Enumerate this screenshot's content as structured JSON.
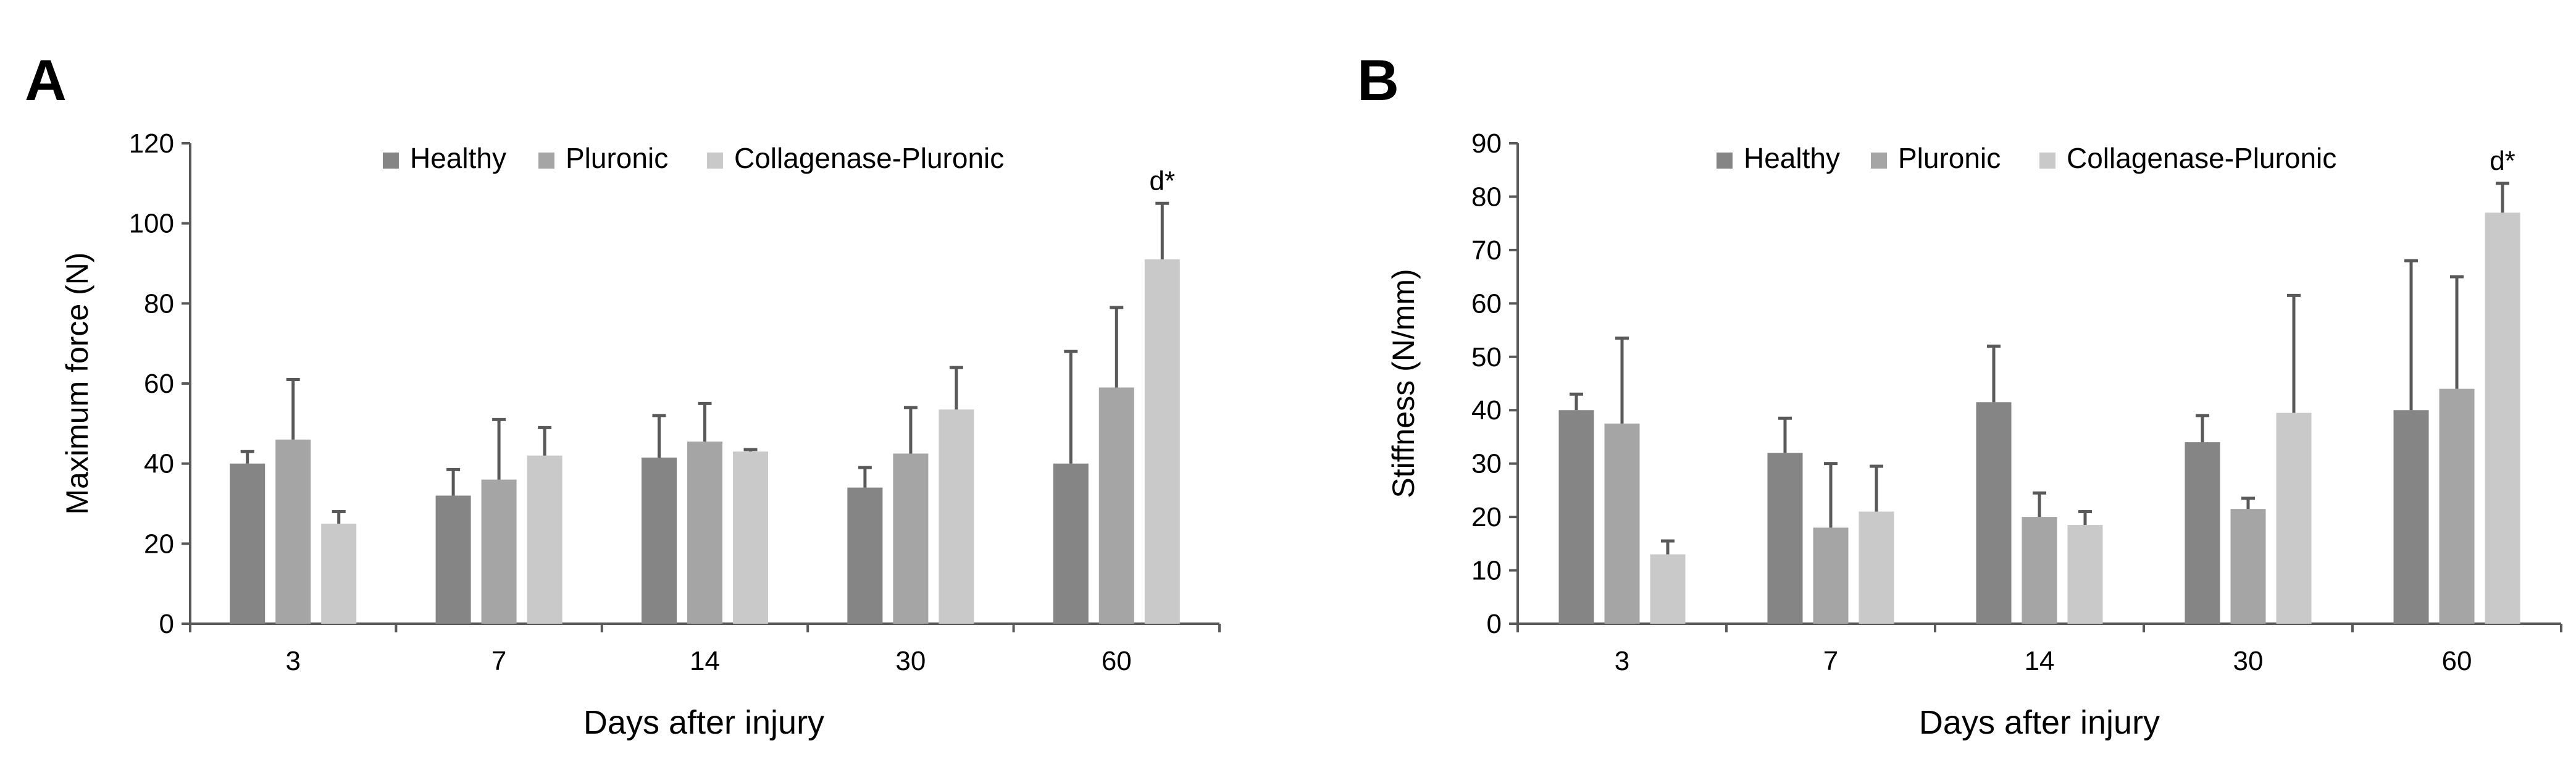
{
  "colors": {
    "healthy": "#858585",
    "pluronic": "#a5a5a5",
    "collagenase": "#c9c9c9",
    "error_bar": "#595959",
    "axis": "#595959"
  },
  "chart_data": [
    {
      "panel_label": "A",
      "type": "bar",
      "title": "",
      "xlabel": "Days after injury",
      "ylabel": "Maximum force (N)",
      "ylim": [
        0,
        120
      ],
      "yticks": [
        0,
        20,
        40,
        60,
        80,
        100,
        120
      ],
      "categories": [
        "3",
        "7",
        "14",
        "30",
        "60"
      ],
      "legend_position": "top-center",
      "series": [
        {
          "name": "Healthy",
          "values": [
            40,
            32,
            41.5,
            34,
            40
          ],
          "errors": [
            3,
            6.5,
            10.5,
            5,
            28
          ]
        },
        {
          "name": "Pluronic",
          "values": [
            46,
            36,
            45.5,
            42.5,
            59
          ],
          "errors": [
            15,
            15,
            9.5,
            11.5,
            20
          ]
        },
        {
          "name": "Collagenase-Pluronic",
          "values": [
            25,
            42,
            43,
            53.5,
            91
          ],
          "errors": [
            3,
            7,
            0.5,
            10.5,
            14
          ]
        }
      ],
      "annotations": [
        {
          "category": "60",
          "series": "Collagenase-Pluronic",
          "text": "d*"
        }
      ]
    },
    {
      "panel_label": "B",
      "type": "bar",
      "title": "",
      "xlabel": "Days after injury",
      "ylabel": "Stiffness (N/mm)",
      "ylim": [
        0,
        90
      ],
      "yticks": [
        0,
        10,
        20,
        30,
        40,
        50,
        60,
        70,
        80,
        90
      ],
      "categories": [
        "3",
        "7",
        "14",
        "30",
        "60"
      ],
      "legend_position": "top-center",
      "series": [
        {
          "name": "Healthy",
          "values": [
            40,
            32,
            41.5,
            34,
            40
          ],
          "errors": [
            3,
            6.5,
            10.5,
            5,
            28
          ]
        },
        {
          "name": "Pluronic",
          "values": [
            37.5,
            18,
            20,
            21.5,
            44
          ],
          "errors": [
            16,
            12,
            4.5,
            2,
            21
          ]
        },
        {
          "name": "Collagenase-Pluronic",
          "values": [
            13,
            21,
            18.5,
            39.5,
            77
          ],
          "errors": [
            2.5,
            8.5,
            2.5,
            22,
            5.5
          ]
        }
      ],
      "annotations": [
        {
          "category": "60",
          "series": "Collagenase-Pluronic",
          "text": "d*"
        }
      ]
    }
  ]
}
